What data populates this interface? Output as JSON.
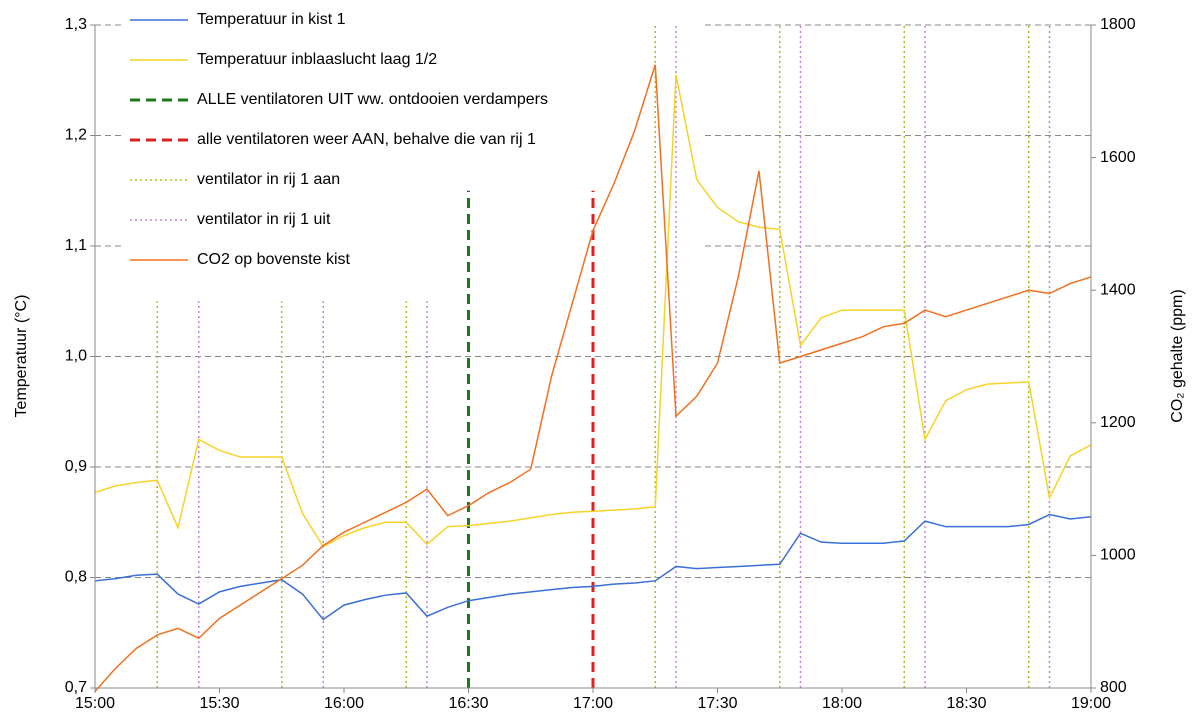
{
  "chart_data": {
    "type": "line",
    "ylabel": "Temperatuur (°C)",
    "y2label": "CO₂ gehalte (ppm)",
    "xlim": [
      "15:00",
      "19:00"
    ],
    "xticks": [
      "15:00",
      "15:30",
      "16:00",
      "16:30",
      "17:00",
      "17:30",
      "18:00",
      "18:30",
      "19:00"
    ],
    "ylim": [
      0.7,
      1.3
    ],
    "yticks": [
      {
        "value": 0.7,
        "label": "0,7"
      },
      {
        "value": 0.8,
        "label": "0,8"
      },
      {
        "value": 0.9,
        "label": "0,9"
      },
      {
        "value": 1.0,
        "label": "1,0"
      },
      {
        "value": 1.1,
        "label": "1,1"
      },
      {
        "value": 1.2,
        "label": "1,2"
      },
      {
        "value": 1.3,
        "label": "1,3"
      }
    ],
    "y2lim": [
      800,
      1800
    ],
    "y2ticks": [
      800,
      1000,
      1200,
      1400,
      1600,
      1800
    ],
    "grid": true,
    "legend": "upper left",
    "x": [
      "15:00",
      "15:05",
      "15:10",
      "15:15",
      "15:20",
      "15:25",
      "15:30",
      "15:35",
      "15:40",
      "15:45",
      "15:50",
      "15:55",
      "16:00",
      "16:05",
      "16:10",
      "16:15",
      "16:20",
      "16:25",
      "16:30",
      "16:35",
      "16:40",
      "16:45",
      "16:50",
      "16:55",
      "17:00",
      "17:05",
      "17:10",
      "17:15",
      "17:20",
      "17:25",
      "17:30",
      "17:35",
      "17:40",
      "17:45",
      "17:50",
      "17:55",
      "18:00",
      "18:05",
      "18:10",
      "18:15",
      "18:20",
      "18:25",
      "18:30",
      "18:35",
      "18:40",
      "18:45",
      "18:50",
      "18:55",
      "19:00"
    ],
    "series": [
      {
        "name": "Temperatuur in kist 1",
        "color": "#3a6fd8",
        "style": "solid",
        "values": [
          0.797,
          0.799,
          0.802,
          0.803,
          0.785,
          0.776,
          0.787,
          0.792,
          0.795,
          0.798,
          0.785,
          0.762,
          0.775,
          0.78,
          0.784,
          0.786,
          0.765,
          0.773,
          0.779,
          0.782,
          0.785,
          0.787,
          0.789,
          0.791,
          0.792,
          0.794,
          0.795,
          0.797,
          0.81,
          0.808,
          0.809,
          0.81,
          0.811,
          0.812,
          0.84,
          0.832,
          0.831,
          0.831,
          0.831,
          0.833,
          0.851,
          0.846,
          0.846,
          0.846,
          0.846,
          0.848,
          0.857,
          0.853,
          0.855
        ]
      },
      {
        "name": "Temperatuur inblaaslucht laag 1/2",
        "color": "#f5d327",
        "style": "solid",
        "values": [
          0.877,
          0.883,
          0.886,
          0.888,
          0.845,
          0.925,
          0.915,
          0.909,
          0.909,
          0.909,
          0.858,
          0.828,
          0.838,
          0.845,
          0.85,
          0.85,
          0.83,
          0.846,
          0.847,
          0.849,
          0.851,
          0.854,
          0.857,
          0.859,
          0.86,
          0.861,
          0.862,
          0.864,
          1.255,
          1.16,
          1.135,
          1.122,
          1.117,
          1.115,
          1.01,
          1.035,
          1.042,
          1.042,
          1.042,
          1.042,
          0.925,
          0.96,
          0.97,
          0.975,
          0.976,
          0.977,
          0.872,
          0.91,
          0.92
        ]
      },
      {
        "name": "ALLE ventilatoren UIT ww. ontdooien verdampers",
        "color": "#1a7a1a",
        "style": "dashed",
        "kind": "event",
        "x": [
          "16:30"
        ],
        "values": [
          1.15
        ]
      },
      {
        "name": "alle ventilatoren weer AAN, behalve die van rij 1",
        "color": "#e02020",
        "style": "dashed",
        "kind": "event",
        "x": [
          "17:00"
        ],
        "values": [
          1.15
        ]
      },
      {
        "name": "ventilator in rij 1 aan",
        "color": "#a8c020",
        "style": "dotted",
        "kind": "event",
        "x": [
          "15:15",
          "15:45",
          "16:15",
          "17:15",
          "17:45",
          "18:15",
          "18:45"
        ],
        "values": [
          1.05,
          1.05,
          1.05,
          1.3,
          1.3,
          1.3,
          1.3
        ]
      },
      {
        "name": "ventilator in rij 1 uit",
        "color": "#c080e0",
        "style": "dotted",
        "kind": "event",
        "x": [
          "15:25",
          "15:55",
          "16:20",
          "17:20",
          "17:50",
          "18:20",
          "18:50"
        ],
        "values": [
          1.05,
          1.05,
          1.05,
          1.3,
          1.3,
          1.3,
          1.3
        ]
      },
      {
        "name": "CO2 op bovenste kist",
        "color": "#f07020",
        "style": "solid",
        "axis": "y2",
        "values": [
          795,
          830,
          860,
          880,
          890,
          875,
          905,
          925,
          945,
          965,
          985,
          1015,
          1035,
          1050,
          1065,
          1080,
          1100,
          1060,
          1075,
          1095,
          1110,
          1130,
          1270,
          1380,
          1490,
          1560,
          1640,
          1740,
          1210,
          1240,
          1290,
          1420,
          1580,
          1290,
          1300,
          1310,
          1320,
          1330,
          1345,
          1350,
          1370,
          1360,
          1370,
          1380,
          1390,
          1400,
          1395,
          1410,
          1420
        ]
      }
    ]
  }
}
